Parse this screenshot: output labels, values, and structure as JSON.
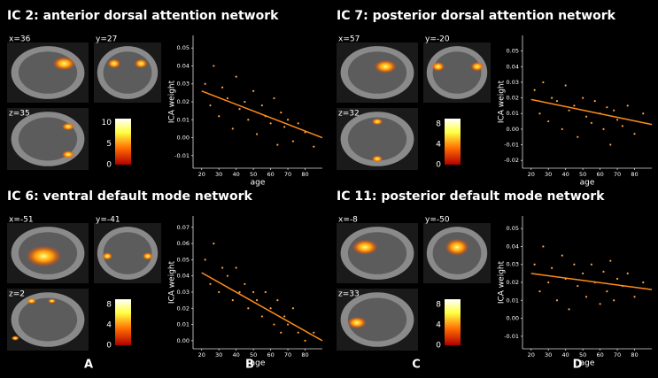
{
  "panels": [
    {
      "title": "IC 2: anterior dorsal attention network",
      "coords": [
        "x=36",
        "y=27",
        "z=35"
      ],
      "colorbar": {
        "ticks": [
          0,
          5,
          10
        ],
        "lim": [
          0,
          11
        ]
      }
    },
    {
      "title": "IC 7: posterior dorsal attention network",
      "coords": [
        "x=57",
        "y=-20",
        "z=32"
      ],
      "colorbar": {
        "ticks": [
          0,
          4,
          8
        ],
        "lim": [
          0,
          9
        ]
      }
    },
    {
      "title": "IC 6: ventral default mode network",
      "coords": [
        "x=-51",
        "y=-41",
        "z=2"
      ],
      "colorbar": {
        "ticks": [
          0,
          4,
          8
        ],
        "lim": [
          0,
          9
        ]
      }
    },
    {
      "title": "IC 11: posterior default mode network",
      "coords": [
        "x=-8",
        "y=-50",
        "z=33"
      ],
      "colorbar": {
        "ticks": [
          0,
          4,
          8
        ],
        "lim": [
          0,
          9
        ]
      }
    }
  ],
  "letters": [
    "A",
    "B",
    "C",
    "D"
  ],
  "chart_data": [
    {
      "type": "scatter",
      "x_label": "age",
      "y_label": "ICA weight",
      "color": "#ffa040",
      "line_color": "#ff8c1a",
      "xlim": [
        15,
        90
      ],
      "xticks": [
        20,
        30,
        40,
        50,
        60,
        70,
        80
      ],
      "ylim": [
        -0.017,
        0.057
      ],
      "yticks": [
        -0.01,
        {
          "value": 0,
          "label": "0.00"
        },
        0.01,
        0.02,
        0.03,
        0.04,
        0.05
      ],
      "x": [
        22,
        25,
        27,
        30,
        32,
        35,
        38,
        40,
        42,
        45,
        47,
        50,
        52,
        55,
        57,
        60,
        62,
        64,
        66,
        68,
        70,
        73,
        76,
        80,
        85
      ],
      "values": [
        0.03,
        0.018,
        0.04,
        0.012,
        0.028,
        0.022,
        0.005,
        0.034,
        0.016,
        0.02,
        0.01,
        0.026,
        0.002,
        0.018,
        0.012,
        0.008,
        0.022,
        -0.004,
        0.014,
        0.006,
        0.01,
        -0.002,
        0.008,
        0.003,
        -0.005
      ],
      "trend": {
        "x": [
          20,
          90
        ],
        "y": [
          0.026,
          0.0
        ]
      }
    },
    {
      "type": "scatter",
      "x_label": "age",
      "y_label": "ICA weight",
      "color": "#ffa040",
      "line_color": "#ff8c1a",
      "xlim": [
        15,
        90
      ],
      "xticks": [
        20,
        30,
        40,
        50,
        60,
        70,
        80
      ],
      "ylim": [
        -0.025,
        0.06
      ],
      "yticks": [
        -0.02,
        -0.01,
        {
          "value": 0,
          "label": "0.00"
        },
        0.01,
        0.02,
        0.03,
        0.04,
        0.05
      ],
      "x": [
        22,
        25,
        27,
        30,
        32,
        35,
        38,
        40,
        42,
        45,
        47,
        50,
        52,
        55,
        57,
        60,
        62,
        64,
        66,
        68,
        70,
        73,
        76,
        80,
        85
      ],
      "values": [
        0.025,
        0.01,
        0.03,
        0.005,
        0.02,
        0.018,
        0.0,
        0.028,
        0.012,
        0.015,
        -0.005,
        0.02,
        0.008,
        0.004,
        0.018,
        0.01,
        0.0,
        0.014,
        -0.01,
        0.012,
        0.006,
        0.002,
        0.015,
        -0.003,
        0.01
      ],
      "trend": {
        "x": [
          20,
          90
        ],
        "y": [
          0.019,
          0.003
        ]
      }
    },
    {
      "type": "scatter",
      "x_label": "age",
      "y_label": "ICA weight",
      "color": "#ffa040",
      "line_color": "#ff8c1a",
      "xlim": [
        15,
        90
      ],
      "xticks": [
        20,
        30,
        40,
        50,
        60,
        70,
        80
      ],
      "ylim": [
        -0.005,
        0.077
      ],
      "yticks": [
        {
          "value": 0,
          "label": "0.00"
        },
        0.01,
        0.02,
        0.03,
        0.04,
        0.05,
        0.06,
        0.07
      ],
      "x": [
        22,
        25,
        27,
        30,
        32,
        35,
        38,
        40,
        42,
        45,
        47,
        50,
        52,
        55,
        57,
        60,
        62,
        64,
        66,
        68,
        70,
        73,
        76,
        80,
        85
      ],
      "values": [
        0.05,
        0.035,
        0.06,
        0.03,
        0.045,
        0.04,
        0.025,
        0.045,
        0.03,
        0.035,
        0.02,
        0.03,
        0.025,
        0.015,
        0.03,
        0.02,
        0.01,
        0.025,
        0.005,
        0.015,
        0.01,
        0.02,
        0.005,
        0.0,
        0.005
      ],
      "trend": {
        "x": [
          20,
          90
        ],
        "y": [
          0.042,
          0.0
        ]
      }
    },
    {
      "type": "scatter",
      "x_label": "age",
      "y_label": "ICA weight",
      "color": "#ffa040",
      "line_color": "#ff8c1a",
      "xlim": [
        15,
        90
      ],
      "xticks": [
        20,
        30,
        40,
        50,
        60,
        70,
        80
      ],
      "ylim": [
        -0.017,
        0.057
      ],
      "yticks": [
        -0.01,
        {
          "value": 0,
          "label": "0.00"
        },
        0.01,
        0.02,
        0.03,
        0.04,
        0.05
      ],
      "x": [
        22,
        25,
        27,
        30,
        32,
        35,
        38,
        40,
        42,
        45,
        47,
        50,
        52,
        55,
        57,
        60,
        62,
        64,
        66,
        68,
        70,
        73,
        76,
        80,
        85
      ],
      "values": [
        0.03,
        0.015,
        0.04,
        0.02,
        0.028,
        0.01,
        0.035,
        0.022,
        0.005,
        0.03,
        0.018,
        0.025,
        0.012,
        0.03,
        0.02,
        0.008,
        0.026,
        0.015,
        0.032,
        0.01,
        0.022,
        0.018,
        0.025,
        0.012,
        0.02
      ],
      "trend": {
        "x": [
          20,
          90
        ],
        "y": [
          0.025,
          0.016
        ]
      }
    }
  ]
}
